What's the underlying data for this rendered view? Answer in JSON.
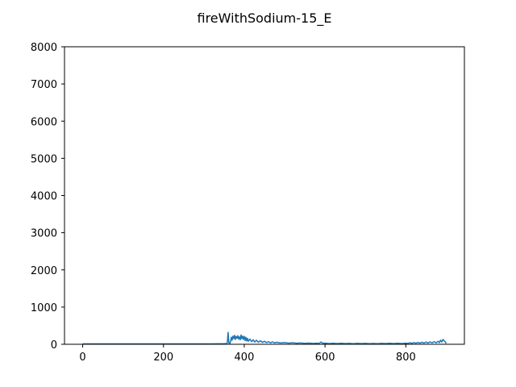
{
  "chart_data": {
    "type": "line",
    "title": "fireWithSodium-15_E",
    "xlabel": "",
    "ylabel": "",
    "xlim": [
      -45,
      945
    ],
    "ylim": [
      0,
      8000
    ],
    "xticks": [
      0,
      200,
      400,
      600,
      800
    ],
    "yticks": [
      0,
      1000,
      2000,
      3000,
      4000,
      5000,
      6000,
      7000,
      8000
    ],
    "grid": false,
    "series": [
      {
        "color": "#1f77b4",
        "points": [
          [
            0,
            10
          ],
          [
            40,
            12
          ],
          [
            80,
            10
          ],
          [
            120,
            12
          ],
          [
            160,
            10
          ],
          [
            200,
            12
          ],
          [
            240,
            10
          ],
          [
            280,
            12
          ],
          [
            320,
            12
          ],
          [
            350,
            15
          ],
          [
            356,
            18
          ],
          [
            358,
            40
          ],
          [
            360,
            320
          ],
          [
            362,
            30
          ],
          [
            364,
            20
          ],
          [
            366,
            60
          ],
          [
            368,
            190
          ],
          [
            370,
            110
          ],
          [
            372,
            220
          ],
          [
            374,
            150
          ],
          [
            376,
            240
          ],
          [
            378,
            130
          ],
          [
            380,
            210
          ],
          [
            382,
            160
          ],
          [
            384,
            230
          ],
          [
            386,
            140
          ],
          [
            388,
            200
          ],
          [
            390,
            120
          ],
          [
            392,
            250
          ],
          [
            394,
            150
          ],
          [
            396,
            220
          ],
          [
            398,
            130
          ],
          [
            400,
            210
          ],
          [
            402,
            100
          ],
          [
            404,
            190
          ],
          [
            406,
            90
          ],
          [
            408,
            160
          ],
          [
            410,
            80
          ],
          [
            414,
            140
          ],
          [
            418,
            70
          ],
          [
            422,
            120
          ],
          [
            426,
            60
          ],
          [
            430,
            110
          ],
          [
            435,
            55
          ],
          [
            440,
            95
          ],
          [
            445,
            50
          ],
          [
            450,
            80
          ],
          [
            455,
            45
          ],
          [
            460,
            70
          ],
          [
            465,
            40
          ],
          [
            470,
            65
          ],
          [
            475,
            38
          ],
          [
            480,
            55
          ],
          [
            490,
            35
          ],
          [
            500,
            45
          ],
          [
            510,
            30
          ],
          [
            520,
            40
          ],
          [
            530,
            28
          ],
          [
            540,
            36
          ],
          [
            550,
            25
          ],
          [
            560,
            32
          ],
          [
            570,
            22
          ],
          [
            580,
            30
          ],
          [
            585,
            20
          ],
          [
            590,
            60
          ],
          [
            595,
            25
          ],
          [
            600,
            30
          ],
          [
            610,
            20
          ],
          [
            620,
            28
          ],
          [
            630,
            18
          ],
          [
            640,
            26
          ],
          [
            650,
            18
          ],
          [
            660,
            24
          ],
          [
            670,
            16
          ],
          [
            680,
            25
          ],
          [
            690,
            18
          ],
          [
            700,
            24
          ],
          [
            710,
            16
          ],
          [
            720,
            22
          ],
          [
            730,
            16
          ],
          [
            740,
            24
          ],
          [
            750,
            18
          ],
          [
            760,
            26
          ],
          [
            770,
            18
          ],
          [
            780,
            28
          ],
          [
            790,
            20
          ],
          [
            800,
            30
          ],
          [
            805,
            22
          ],
          [
            810,
            40
          ],
          [
            815,
            25
          ],
          [
            820,
            45
          ],
          [
            825,
            28
          ],
          [
            830,
            50
          ],
          [
            835,
            30
          ],
          [
            840,
            55
          ],
          [
            845,
            32
          ],
          [
            850,
            60
          ],
          [
            855,
            35
          ],
          [
            860,
            65
          ],
          [
            865,
            38
          ],
          [
            870,
            70
          ],
          [
            875,
            40
          ],
          [
            880,
            80
          ],
          [
            883,
            45
          ],
          [
            886,
            110
          ],
          [
            889,
            60
          ],
          [
            892,
            130
          ],
          [
            895,
            90
          ],
          [
            898,
            60
          ],
          [
            900,
            20
          ]
        ]
      }
    ]
  }
}
